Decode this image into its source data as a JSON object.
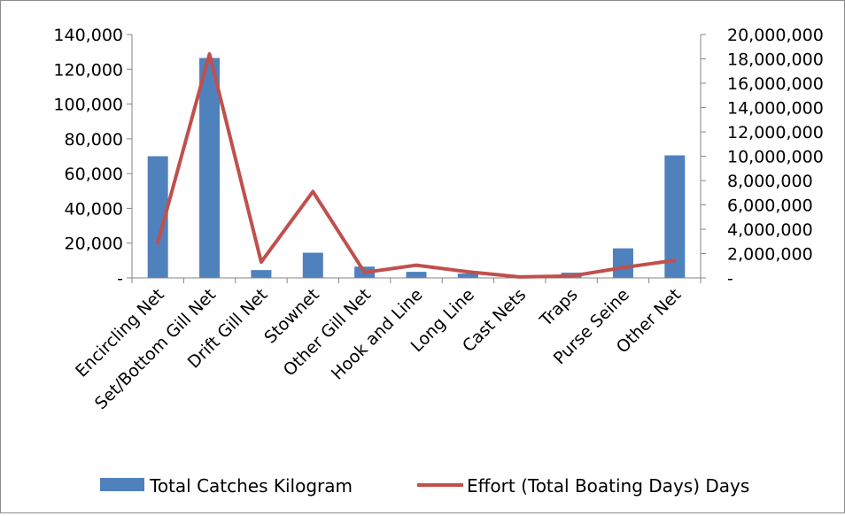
{
  "chart_data": {
    "type": "bar",
    "categories": [
      "Encircling Net",
      "Set/Bottom Gill Net",
      "Drift Gill Net",
      "Stownet",
      "Other Gill Net",
      "Hook and Line",
      "Long Line",
      "Cast Nets",
      "Traps",
      "Purse Seine",
      "Other Net"
    ],
    "series": [
      {
        "name": "Total Catches Kilogram",
        "type": "bar",
        "axis": "left",
        "color": "#4f81bd",
        "values": [
          70000,
          126500,
          4500,
          14500,
          6500,
          3500,
          2500,
          0,
          3000,
          17000,
          70500
        ]
      },
      {
        "name": "Effort (Total Boating Days) Days",
        "type": "line",
        "axis": "right",
        "color": "#c0504d",
        "values": [
          2900000,
          18400000,
          1300000,
          7100000,
          450000,
          1050000,
          500000,
          80000,
          150000,
          850000,
          1450000
        ]
      }
    ],
    "y_left": {
      "ylim": [
        0,
        140000
      ],
      "ticks": [
        0,
        20000,
        40000,
        60000,
        80000,
        100000,
        120000,
        140000
      ],
      "tick_labels": [
        "-",
        "20,000",
        "40,000",
        "60,000",
        "80,000",
        "100,000",
        "120,000",
        "140,000"
      ]
    },
    "y_right": {
      "ylim": [
        0,
        20000000
      ],
      "ticks": [
        0,
        2000000,
        4000000,
        6000000,
        8000000,
        10000000,
        12000000,
        14000000,
        16000000,
        18000000,
        20000000
      ],
      "tick_labels": [
        "-",
        "2,000,000",
        "4,000,000",
        "6,000,000",
        "8,000,000",
        "10,000,000",
        "12,000,000",
        "14,000,000",
        "16,000,000",
        "18,000,000",
        "20,000,000"
      ]
    },
    "title": "",
    "xlabel": "",
    "ylabel": "",
    "grid": false,
    "legend": "bottom"
  }
}
